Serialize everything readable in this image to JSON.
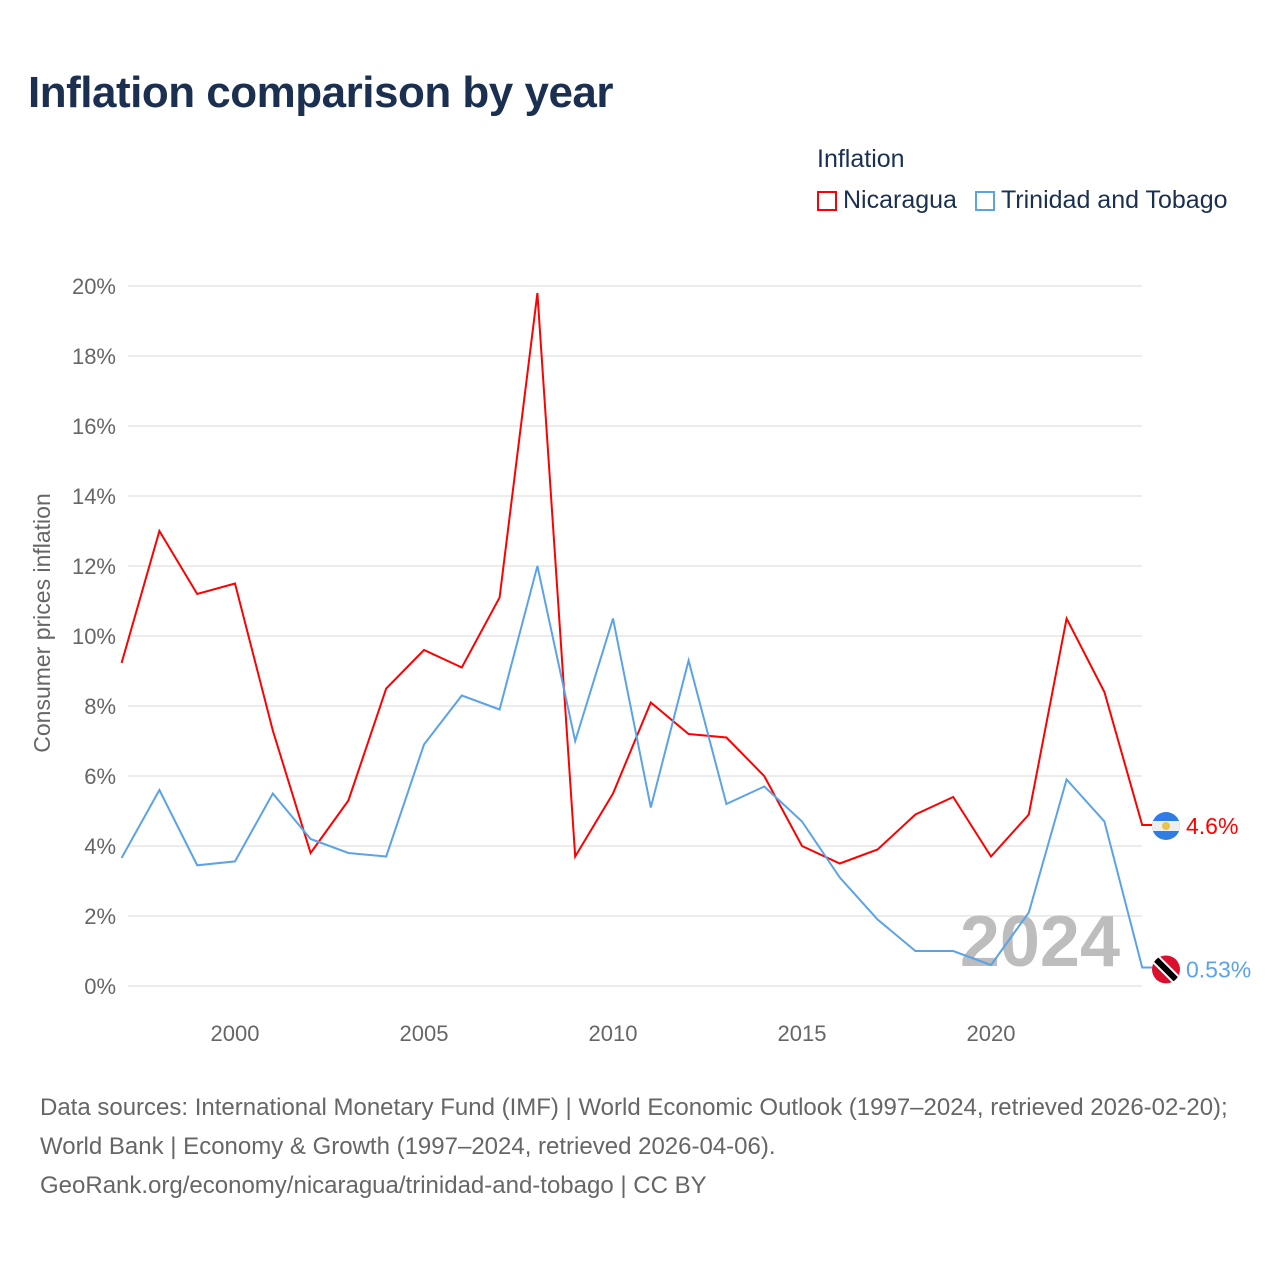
{
  "title": "Inflation comparison by year",
  "legend": {
    "title": "Inflation"
  },
  "watermark_year": "2024",
  "sources": {
    "line1": "Data sources: International Monetary Fund (IMF) | World Economic Outlook (1997–2024, retrieved 2026-02-20); World Bank | Economy & Growth (1997–2024, retrieved 2026-04-06).",
    "line2": "GeoRank.org/economy/nicaragua/trinidad-and-tobago | CC BY"
  },
  "chart_data": {
    "type": "line",
    "title": "Inflation comparison by year",
    "ylabel": "Consumer prices inflation",
    "xlabel": "",
    "ylim": [
      0,
      20
    ],
    "yticks": [
      "0%",
      "2%",
      "4%",
      "6%",
      "8%",
      "10%",
      "12%",
      "14%",
      "16%",
      "18%",
      "20%"
    ],
    "xticks": [
      "2000",
      "2005",
      "2010",
      "2015",
      "2020"
    ],
    "x": [
      1997,
      1998,
      1999,
      2000,
      2001,
      2002,
      2003,
      2004,
      2005,
      2006,
      2007,
      2008,
      2009,
      2010,
      2011,
      2012,
      2013,
      2014,
      2015,
      2016,
      2017,
      2018,
      2019,
      2020,
      2021,
      2022,
      2023,
      2024
    ],
    "series": [
      {
        "name": "Nicaragua",
        "color": "#ff0000",
        "end_label": "4.6%",
        "values": [
          9.23,
          13.0,
          11.2,
          11.5,
          7.3,
          3.8,
          5.3,
          8.5,
          9.6,
          9.1,
          11.1,
          19.8,
          3.7,
          5.5,
          8.1,
          7.2,
          7.1,
          6.0,
          4.0,
          3.5,
          3.9,
          4.9,
          5.4,
          3.7,
          4.9,
          10.5,
          8.4,
          4.6
        ]
      },
      {
        "name": "Trinidad and Tobago",
        "color": "#5ba3e8",
        "end_label": "0.53%",
        "values": [
          3.66,
          5.6,
          3.45,
          3.56,
          5.5,
          4.2,
          3.8,
          3.7,
          6.9,
          8.3,
          7.9,
          12.0,
          7.0,
          10.5,
          5.1,
          9.3,
          5.2,
          5.7,
          4.7,
          3.1,
          1.9,
          1.0,
          1.0,
          0.6,
          2.1,
          5.9,
          4.7,
          0.53
        ]
      }
    ]
  }
}
